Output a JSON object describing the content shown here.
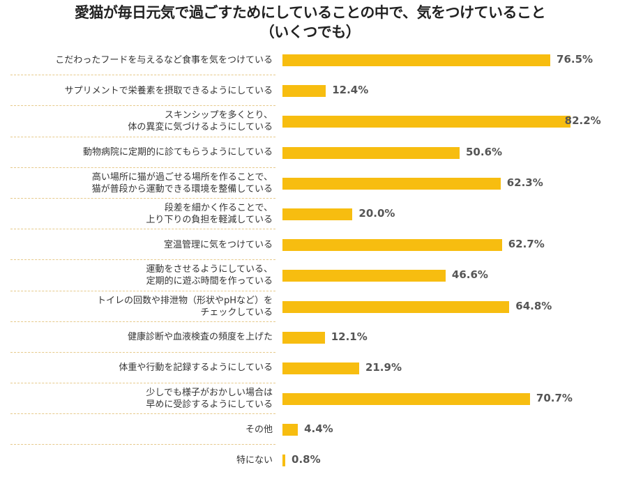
{
  "chart_data": {
    "type": "bar",
    "orientation": "horizontal",
    "title": [
      "愛猫が毎日元気で過ごすためにしていることの中で、気をつけていること",
      "（いくつでも）"
    ],
    "categories": [
      [
        "こだわったフードを与えるなど食事を気をつけている"
      ],
      [
        "サプリメントで栄養素を摂取できるようにしている"
      ],
      [
        "スキンシップを多くとり、",
        "体の異変に気づけるようにしている"
      ],
      [
        "動物病院に定期的に診てもらうようにしている"
      ],
      [
        "高い場所に猫が過ごせる場所を作ることで、",
        "猫が普段から運動できる環境を整備している"
      ],
      [
        "段差を細かく作ることで、",
        "上り下りの負担を軽減している"
      ],
      [
        "室温管理に気をつけている"
      ],
      [
        "運動をさせるようにしている、",
        "定期的に遊ぶ時間を作っている"
      ],
      [
        "トイレの回数や排泄物（形状やpHなど）を",
        "チェックしている"
      ],
      [
        "健康診断や血液検査の頻度を上げた"
      ],
      [
        "体重や行動を記録するようにしている"
      ],
      [
        "少しでも様子がおかしい場合は",
        "早めに受診するようにしている"
      ],
      [
        "その他"
      ],
      [
        "特にない"
      ]
    ],
    "values": [
      76.5,
      12.4,
      82.2,
      50.6,
      62.3,
      20.0,
      62.7,
      46.6,
      64.8,
      12.1,
      21.9,
      70.7,
      4.4,
      0.8
    ],
    "value_labels": [
      "76.5%",
      "12.4%",
      "82.2%",
      "50.6%",
      "62.3%",
      "20.0%",
      "62.7%",
      "46.6%",
      "64.8%",
      "12.1%",
      "21.9%",
      "70.7%",
      "4.4%",
      "0.8%"
    ],
    "unit": "%",
    "xlim": [
      0,
      90
    ],
    "grid": false,
    "bar_color": "#f7bd10"
  }
}
